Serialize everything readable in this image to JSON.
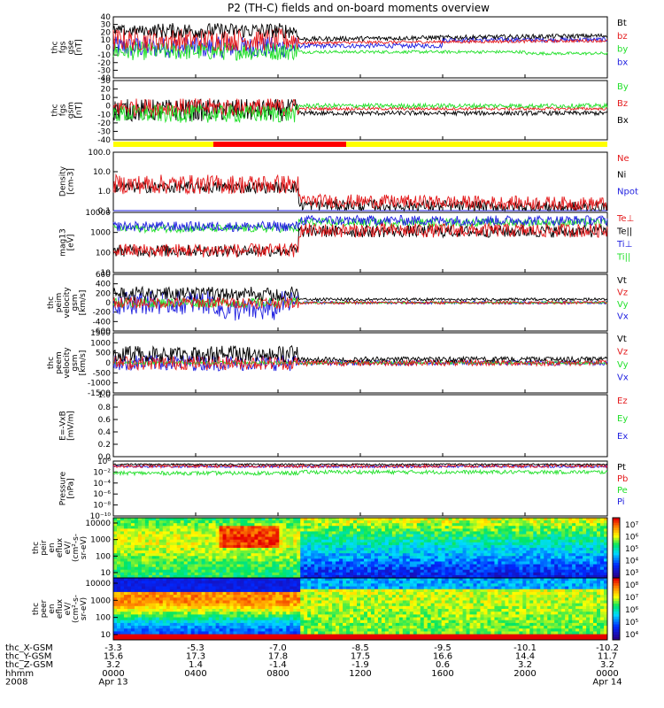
{
  "title": "P2 (TH-C) fields and on-board moments overview",
  "colors": {
    "black": "#000000",
    "red": "#e41a1c",
    "green": "#22e02a",
    "blue": "#1f1fe0",
    "yellow": "#ffff00",
    "bar_red": "#ff0000"
  },
  "panels": [
    {
      "id": "fgs-gse",
      "ylabel": [
        "thc",
        "fgs",
        "gse",
        "[nT]"
      ],
      "ticks": [
        "40",
        "30",
        "20",
        "10",
        "0",
        "-10",
        "-20",
        "-30",
        "-40"
      ],
      "ylim": [
        -40,
        40
      ],
      "scale": "linear",
      "legend": [
        {
          "label": "Bt",
          "color": "black"
        },
        {
          "label": "bz",
          "color": "red"
        },
        {
          "label": "by",
          "color": "green"
        },
        {
          "label": "bx",
          "color": "blue"
        }
      ]
    },
    {
      "id": "fgs-gsm",
      "ylabel": [
        "thc",
        "fgs",
        "gsm",
        "[nT]"
      ],
      "ticks": [
        "30",
        "20",
        "10",
        "0",
        "-10",
        "-20",
        "-30",
        "-40"
      ],
      "ylim": [
        -40,
        40
      ],
      "scale": "linear",
      "legend": [
        {
          "label": "By",
          "color": "green"
        },
        {
          "label": "Bz",
          "color": "red"
        },
        {
          "label": "Bx",
          "color": "black"
        }
      ]
    },
    {
      "id": "density",
      "ylabel": [
        "Density",
        "[cm-3]"
      ],
      "ticks": [
        "100.0",
        "10.0",
        "1.0",
        "0.1"
      ],
      "ylim": [
        0.1,
        100
      ],
      "scale": "log",
      "legend": [
        {
          "label": "Ne",
          "color": "red"
        },
        {
          "label": "Ni",
          "color": "black"
        },
        {
          "label": "Npot",
          "color": "blue"
        }
      ]
    },
    {
      "id": "temperature",
      "ylabel": [
        "mag13",
        "[eV]"
      ],
      "ticks": [
        "10000",
        "1000",
        "100",
        "10"
      ],
      "ylim": [
        10,
        10000
      ],
      "scale": "log",
      "legend": [
        {
          "label": "Te⊥",
          "color": "red"
        },
        {
          "label": "Te||",
          "color": "black"
        },
        {
          "label": "Ti⊥",
          "color": "blue"
        },
        {
          "label": "Ti||",
          "color": "green"
        }
      ]
    },
    {
      "id": "peim-velocity",
      "ylabel": [
        "thc",
        "peim",
        "velocity",
        "gsm",
        "[km/s]"
      ],
      "ticks": [
        "600",
        "400",
        "200",
        "0",
        "-200",
        "-400",
        "-600"
      ],
      "ylim": [
        -600,
        600
      ],
      "scale": "linear",
      "legend": [
        {
          "label": "Vt",
          "color": "black"
        },
        {
          "label": "Vz",
          "color": "red"
        },
        {
          "label": "Vy",
          "color": "green"
        },
        {
          "label": "Vx",
          "color": "blue"
        }
      ]
    },
    {
      "id": "peem-velocity",
      "ylabel": [
        "thc",
        "peem",
        "velocity",
        "gsm",
        "[km/s]"
      ],
      "ticks": [
        "1500",
        "1000",
        "500",
        "0",
        "-500",
        "-1000",
        "-1500"
      ],
      "ylim": [
        -1500,
        1500
      ],
      "scale": "linear",
      "legend": [
        {
          "label": "Vt",
          "color": "black"
        },
        {
          "label": "Vz",
          "color": "red"
        },
        {
          "label": "Vy",
          "color": "green"
        },
        {
          "label": "Vx",
          "color": "blue"
        }
      ]
    },
    {
      "id": "e-field",
      "ylabel": [
        "E=-VxB",
        "[mV/m]"
      ],
      "ticks": [
        "1.0",
        "0.8",
        "0.6",
        "0.4",
        "0.2",
        "0.0"
      ],
      "ylim": [
        0,
        1
      ],
      "scale": "linear",
      "legend": [
        {
          "label": "Ez",
          "color": "red"
        },
        {
          "label": "Ey",
          "color": "green"
        },
        {
          "label": "Ex",
          "color": "blue"
        }
      ]
    },
    {
      "id": "pressure",
      "ylabel": [
        "Pressure",
        "[nPa]"
      ],
      "ticks": [
        "10⁰",
        "10⁻²",
        "10⁻⁴",
        "10⁻⁶",
        "10⁻⁸",
        "10⁻¹⁰"
      ],
      "ylim": [
        1e-10,
        1
      ],
      "scale": "log",
      "legend": [
        {
          "label": "Pt",
          "color": "black"
        },
        {
          "label": "Pb",
          "color": "red"
        },
        {
          "label": "Pe",
          "color": "green"
        },
        {
          "label": "Pi",
          "color": "blue"
        }
      ]
    }
  ],
  "spectrograms": [
    {
      "id": "peir",
      "ylabel": [
        "thc",
        "peir",
        "en",
        "eflux",
        "eV/",
        "(cm²-s-",
        "sr-eV)"
      ],
      "ticks": [
        "10000",
        "1000",
        "100",
        "10"
      ],
      "ylim": [
        10,
        10000
      ],
      "scale": "log",
      "colorbar_ticks": [
        "10⁷",
        "10⁶",
        "10⁵",
        "10⁴",
        "10³"
      ]
    },
    {
      "id": "peer",
      "ylabel": [
        "thc",
        "peer",
        "en",
        "eflux",
        "eV/",
        "(cm²-s-",
        "sr-eV)"
      ],
      "ticks": [
        "10000",
        "1000",
        "100",
        "10"
      ],
      "ylim": [
        10,
        10000
      ],
      "scale": "log",
      "colorbar_ticks": [
        "10⁸",
        "10⁷",
        "10⁶",
        "10⁵",
        "10⁴"
      ]
    }
  ],
  "chart_data": {
    "type": "line",
    "title": "P2 (TH-C) fields and on-board moments overview",
    "x_hours": [
      0,
      4,
      8,
      12,
      16,
      20,
      24
    ],
    "series": [
      {
        "name": "Bt",
        "values": [
          20,
          25,
          28,
          10,
          10,
          12,
          15
        ]
      },
      {
        "name": "Ne",
        "values": [
          1.5,
          2.5,
          3.0,
          0.5,
          0.4,
          0.3,
          0.3
        ]
      },
      {
        "name": "Ti⊥",
        "values": [
          3000,
          2000,
          2000,
          4000,
          4500,
          4000,
          3500
        ]
      },
      {
        "name": "Te⊥",
        "values": [
          200,
          100,
          150,
          1500,
          1500,
          1200,
          1000
        ]
      },
      {
        "name": "Pt",
        "values": [
          0.3,
          0.4,
          0.5,
          0.3,
          0.15,
          0.2,
          0.3
        ]
      }
    ]
  },
  "xaxis": {
    "rows": [
      {
        "label": "thc_X-GSM",
        "values": [
          "-3.3",
          "-5.3",
          "-7.0",
          "-8.5",
          "-9.5",
          "-10.1",
          "-10.2"
        ]
      },
      {
        "label": "thc_Y-GSM",
        "values": [
          "15.6",
          "17.3",
          "17.8",
          "17.5",
          "16.6",
          "14.4",
          "11.7"
        ]
      },
      {
        "label": "thc_Z-GSM",
        "values": [
          "3.2",
          "1.4",
          "-1.4",
          "-1.9",
          "0.6",
          "3.2",
          "3.2"
        ]
      },
      {
        "label": "hhmm",
        "values": [
          "0000",
          "0400",
          "0800",
          "1200",
          "1600",
          "2000",
          "0000"
        ]
      },
      {
        "label": "2008",
        "values": [
          "Apr 13",
          "",
          "",
          "",
          "",
          "",
          "Apr 14"
        ]
      }
    ]
  }
}
